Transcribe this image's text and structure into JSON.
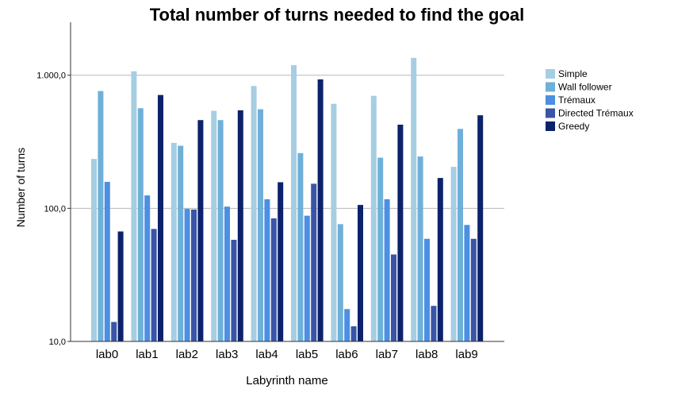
{
  "chart_data": {
    "type": "bar",
    "title": "Total number of turns needed to find the goal",
    "xlabel": "Labyrinth name",
    "ylabel": "Number of turns",
    "yscale": "log",
    "ylim": [
      10,
      2500
    ],
    "yticks": [
      {
        "value": 10,
        "label": "10,0"
      },
      {
        "value": 100,
        "label": "100,0"
      },
      {
        "value": 1000,
        "label": "1.000,0"
      }
    ],
    "grid": "horizontal",
    "legend_position": "right",
    "categories": [
      "lab0",
      "lab1",
      "lab2",
      "lab3",
      "lab4",
      "lab5",
      "lab6",
      "lab7",
      "lab8",
      "lab9"
    ],
    "series": [
      {
        "name": "Simple",
        "color": "#a6cee3",
        "values": [
          235,
          1070,
          310,
          540,
          830,
          1190,
          610,
          700,
          1350,
          205
        ]
      },
      {
        "name": "Wall follower",
        "color": "#6fb0d9",
        "values": [
          760,
          565,
          295,
          460,
          555,
          260,
          76,
          240,
          245,
          395
        ]
      },
      {
        "name": "Trémaux",
        "color": "#4c8fe3",
        "values": [
          158,
          125,
          99,
          103,
          117,
          88,
          17.5,
          117,
          59,
          75
        ]
      },
      {
        "name": "Directed Trémaux",
        "color": "#3a55a6",
        "values": [
          14,
          70,
          98,
          58,
          84,
          153,
          13,
          45,
          18.5,
          59
        ]
      },
      {
        "name": "Greedy",
        "color": "#0c226b",
        "values": [
          67,
          710,
          460,
          545,
          157,
          930,
          106,
          425,
          169,
          500
        ]
      }
    ]
  }
}
